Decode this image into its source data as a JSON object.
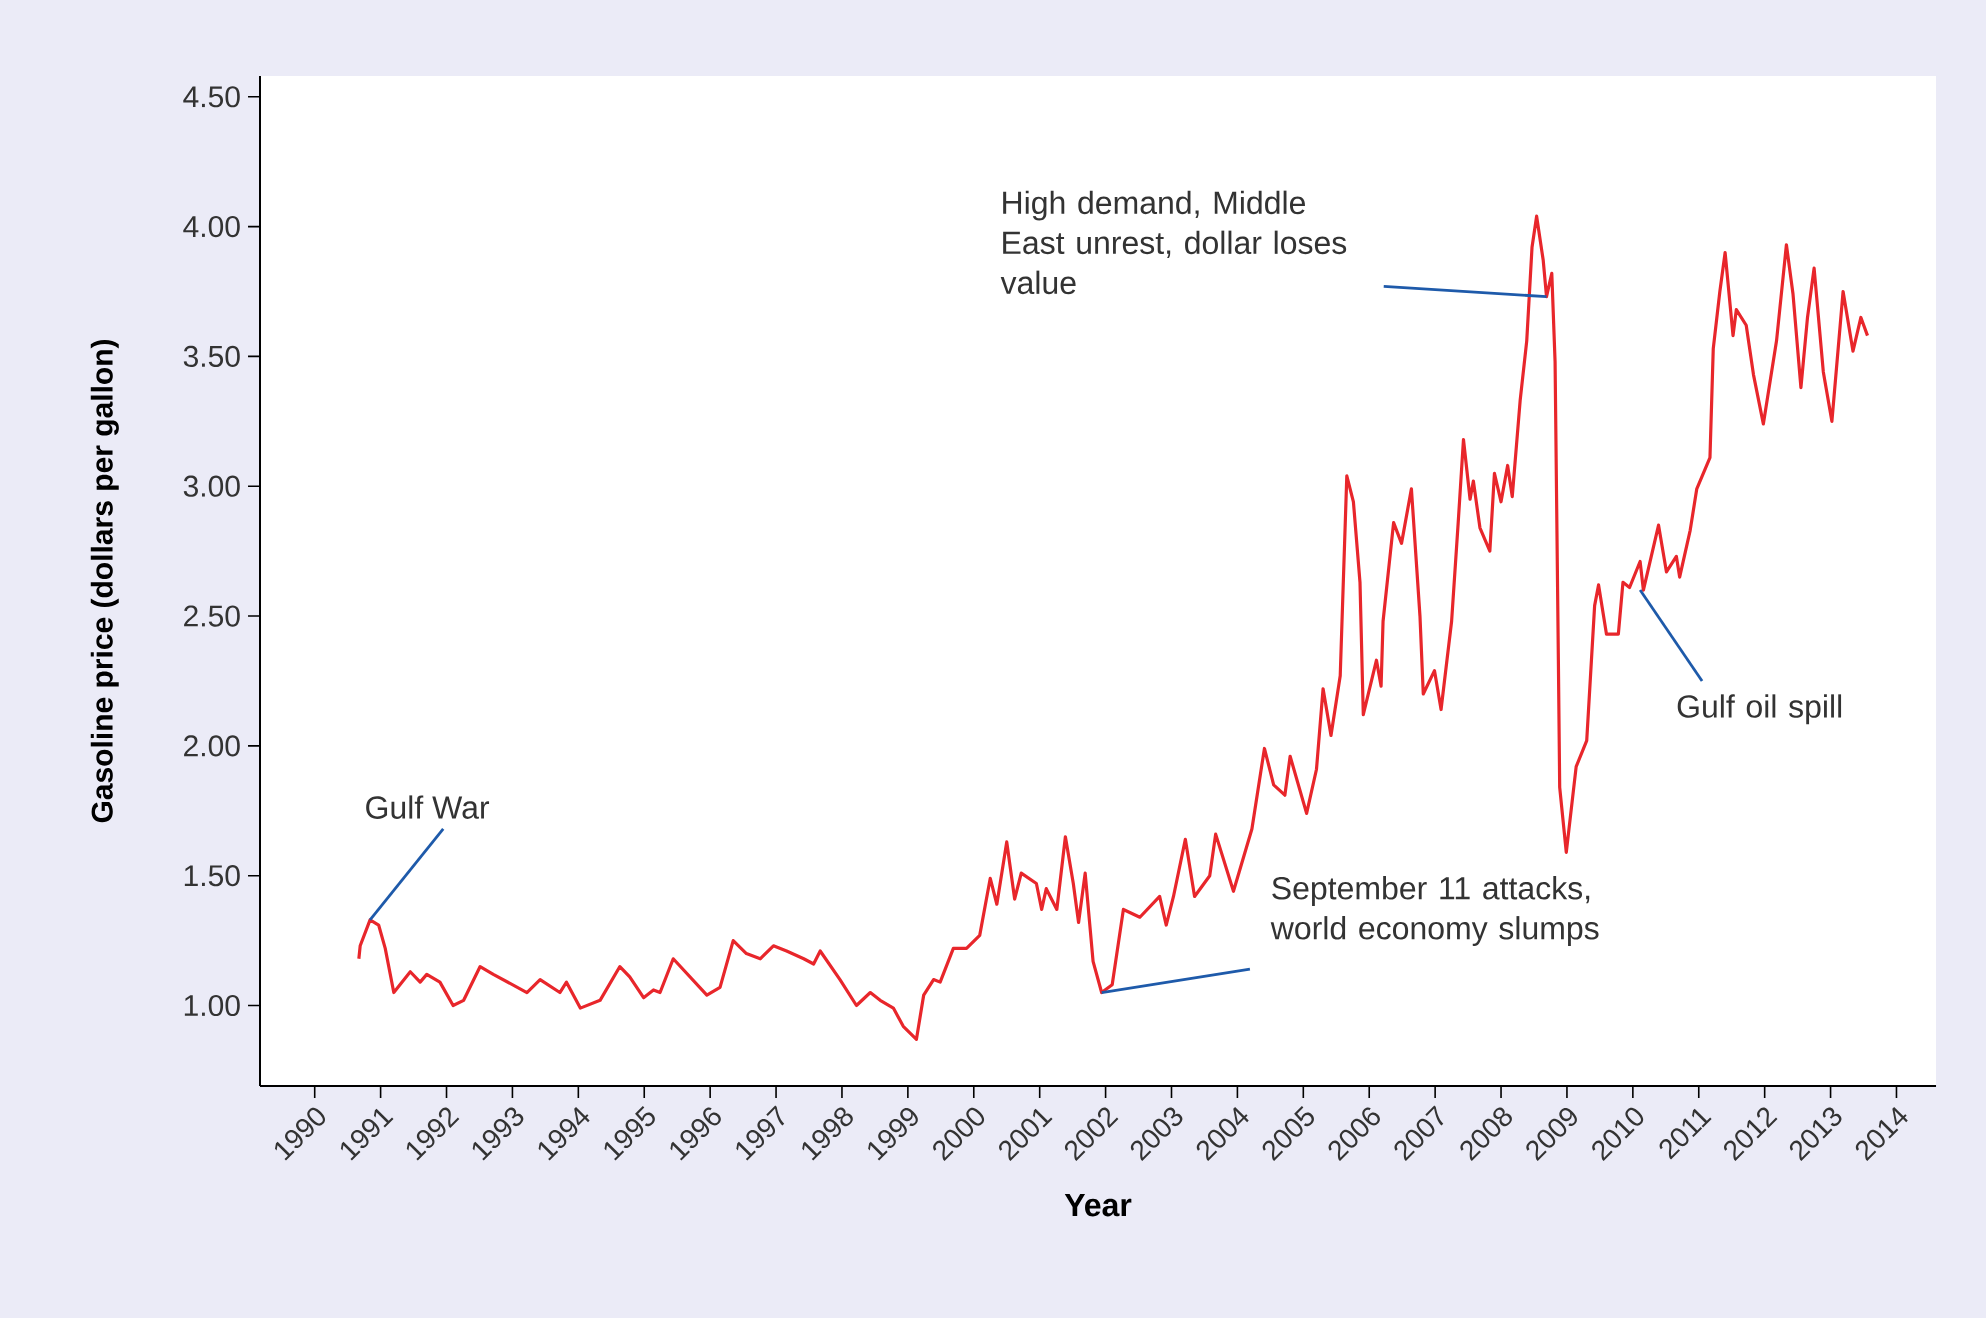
{
  "chart_data": {
    "type": "line",
    "xlabel": "Year",
    "ylabel": "Gasoline price (dollars per gallon)",
    "xlim": [
      1989.17,
      2014.6
    ],
    "ylim": [
      0.69,
      4.58
    ],
    "xticks": [
      1990,
      1991,
      1992,
      1993,
      1994,
      1995,
      1996,
      1997,
      1998,
      1999,
      2000,
      2001,
      2002,
      2003,
      2004,
      2005,
      2006,
      2007,
      2008,
      2009,
      2010,
      2011,
      2012,
      2013,
      2014
    ],
    "yticks": [
      {
        "value": 1,
        "label": "1.00"
      },
      {
        "value": 1.5,
        "label": "1.50"
      },
      {
        "value": 2,
        "label": "2.00"
      },
      {
        "value": 2.5,
        "label": "2.50"
      },
      {
        "value": 3,
        "label": "3.00"
      },
      {
        "value": 3.5,
        "label": "3.50"
      },
      {
        "value": 4,
        "label": "4.00"
      },
      {
        "value": 4.5,
        "label": "4.50"
      }
    ],
    "annotations": [
      {
        "text": "Gulf War",
        "x": 1990.84,
        "y": 1.33
      },
      {
        "text": "High demand, Middle East unrest, dollar loses value",
        "x": 2008.69,
        "y": 3.73
      },
      {
        "text": "September 11 attacks, world economy slumps",
        "x": 2001.94,
        "y": 1.05
      },
      {
        "text": "Gulf oil spill",
        "x": 2010.11,
        "y": 2.6
      }
    ],
    "series": [
      {
        "color": "#e8262b",
        "x": [
          1990.67,
          1990.69,
          1990.84,
          1990.97,
          1991.07,
          1991.2,
          1991.45,
          1991.6,
          1991.7,
          1991.9,
          1992.1,
          1992.26,
          1992.51,
          1992.71,
          1993.22,
          1993.42,
          1993.72,
          1993.82,
          1994.03,
          1994.33,
          1994.63,
          1994.78,
          1994.99,
          1995.14,
          1995.24,
          1995.44,
          1995.95,
          1996.15,
          1996.35,
          1996.55,
          1996.76,
          1996.96,
          1997.16,
          1997.42,
          1997.57,
          1997.67,
          1997.97,
          1998.22,
          1998.43,
          1998.58,
          1998.78,
          1998.93,
          1999.13,
          1999.24,
          1999.39,
          1999.49,
          1999.69,
          1999.89,
          2000.09,
          2000.25,
          2000.35,
          2000.5,
          2000.62,
          2000.72,
          2000.95,
          2001.03,
          2001.1,
          2001.26,
          2001.39,
          2001.51,
          2001.59,
          2001.69,
          2001.81,
          2001.94,
          2002.1,
          2002.27,
          2002.52,
          2002.82,
          2002.92,
          2003.03,
          2003.21,
          2003.35,
          2003.58,
          2003.67,
          2003.94,
          2004.22,
          2004.41,
          2004.55,
          2004.72,
          2004.8,
          2005.05,
          2005.2,
          2005.3,
          2005.42,
          2005.56,
          2005.66,
          2005.76,
          2005.86,
          2005.91,
          2006.11,
          2006.18,
          2006.21,
          2006.37,
          2006.49,
          2006.64,
          2006.77,
          2006.82,
          2006.99,
          2007.09,
          2007.25,
          2007.35,
          2007.43,
          2007.53,
          2007.58,
          2007.68,
          2007.83,
          2007.9,
          2008.0,
          2008.1,
          2008.17,
          2008.29,
          2008.39,
          2008.47,
          2008.54,
          2008.64,
          2008.69,
          2008.77,
          2008.82,
          2008.87,
          2008.89,
          2008.99,
          2009.14,
          2009.3,
          2009.42,
          2009.48,
          2009.6,
          2009.78,
          2009.85,
          2009.95,
          2010.11,
          2010.16,
          2010.39,
          2010.51,
          2010.66,
          2010.71,
          2010.87,
          2010.97,
          2011.17,
          2011.22,
          2011.32,
          2011.4,
          2011.52,
          2011.57,
          2011.72,
          2011.83,
          2011.98,
          2012.18,
          2012.33,
          2012.43,
          2012.55,
          2012.65,
          2012.75,
          2012.89,
          2013.02,
          2013.19,
          2013.34,
          2013.46,
          2013.56
        ],
        "values": [
          1.18,
          1.23,
          1.33,
          1.31,
          1.22,
          1.05,
          1.13,
          1.09,
          1.12,
          1.09,
          1.0,
          1.02,
          1.15,
          1.12,
          1.05,
          1.1,
          1.05,
          1.09,
          0.99,
          1.02,
          1.15,
          1.11,
          1.03,
          1.06,
          1.05,
          1.18,
          1.04,
          1.07,
          1.25,
          1.2,
          1.18,
          1.23,
          1.21,
          1.18,
          1.16,
          1.21,
          1.1,
          1.0,
          1.05,
          1.02,
          0.99,
          0.92,
          0.87,
          1.04,
          1.1,
          1.09,
          1.22,
          1.22,
          1.27,
          1.49,
          1.39,
          1.63,
          1.41,
          1.51,
          1.47,
          1.37,
          1.45,
          1.37,
          1.65,
          1.47,
          1.32,
          1.51,
          1.17,
          1.05,
          1.08,
          1.37,
          1.34,
          1.42,
          1.31,
          1.42,
          1.64,
          1.42,
          1.5,
          1.66,
          1.44,
          1.68,
          1.99,
          1.85,
          1.81,
          1.96,
          1.74,
          1.91,
          2.22,
          2.04,
          2.27,
          3.04,
          2.94,
          2.63,
          2.12,
          2.33,
          2.23,
          2.48,
          2.86,
          2.78,
          2.99,
          2.5,
          2.2,
          2.29,
          2.14,
          2.48,
          2.86,
          3.18,
          2.95,
          3.02,
          2.84,
          2.75,
          3.05,
          2.94,
          3.08,
          2.96,
          3.33,
          3.56,
          3.92,
          4.04,
          3.87,
          3.73,
          3.82,
          3.48,
          2.33,
          1.84,
          1.59,
          1.92,
          2.02,
          2.54,
          2.62,
          2.43,
          2.43,
          2.63,
          2.61,
          2.71,
          2.6,
          2.85,
          2.67,
          2.73,
          2.65,
          2.83,
          2.99,
          3.11,
          3.53,
          3.75,
          3.9,
          3.58,
          3.68,
          3.62,
          3.43,
          3.24,
          3.56,
          3.93,
          3.74,
          3.38,
          3.65,
          3.84,
          3.44,
          3.25,
          3.75,
          3.52,
          3.65,
          3.58
        ]
      }
    ]
  }
}
